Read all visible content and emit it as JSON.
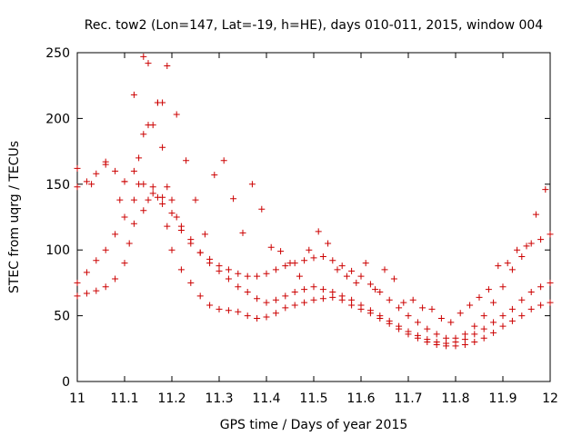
{
  "chart_data": {
    "type": "scatter",
    "title": "Rec. tow2 (Lon=147, Lat=-19, h=HE), days 010-011, 2015, window 004",
    "xlabel": "GPS time / Days of year 2015",
    "ylabel": "STEC from uqrg / TECUs",
    "xlim": [
      11,
      12
    ],
    "ylim": [
      0,
      250
    ],
    "xticks": [
      "11",
      "11.1",
      "11.2",
      "11.3",
      "11.4",
      "11.5",
      "11.6",
      "11.7",
      "11.8",
      "11.9",
      "12"
    ],
    "yticks": [
      "0",
      "50",
      "100",
      "150",
      "200",
      "250"
    ],
    "grid": false,
    "marker": "+",
    "color": "#cc0000",
    "series": [
      {
        "x": [
          11.0,
          11.02,
          11.04,
          11.06,
          11.08,
          11.1,
          11.11,
          11.12,
          11.14,
          11.15,
          11.16,
          11.17,
          11.18,
          11.19,
          11.2,
          11.22,
          11.24,
          11.26,
          11.28,
          11.3,
          11.32,
          11.34,
          11.36,
          11.38,
          11.4,
          11.42,
          11.44,
          11.46,
          11.48,
          11.5,
          11.52,
          11.54,
          11.56,
          11.58,
          11.6,
          11.62,
          11.64,
          11.66,
          11.68,
          11.7,
          11.72,
          11.74,
          11.76,
          11.78,
          11.8,
          11.82,
          11.84,
          11.86,
          11.88,
          11.9,
          11.92,
          11.94,
          11.96,
          11.98,
          12.0
        ],
        "y": [
          65,
          67,
          69,
          72,
          78,
          90,
          105,
          120,
          130,
          138,
          143,
          140,
          135,
          118,
          100,
          85,
          75,
          65,
          58,
          55,
          54,
          53,
          50,
          48,
          49,
          52,
          56,
          58,
          60,
          62,
          63,
          64,
          62,
          58,
          55,
          52,
          48,
          44,
          40,
          36,
          33,
          30,
          28,
          27,
          27,
          28,
          30,
          33,
          37,
          42,
          46,
          50,
          55,
          58,
          60
        ]
      },
      {
        "x": [
          11.0,
          11.02,
          11.04,
          11.06,
          11.08,
          11.1,
          11.12,
          11.14,
          11.16,
          11.18,
          11.2,
          11.22,
          11.24,
          11.26,
          11.28,
          11.3,
          11.32,
          11.34,
          11.36,
          11.38,
          11.4,
          11.42,
          11.44,
          11.46,
          11.48,
          11.5,
          11.52,
          11.54,
          11.56,
          11.58,
          11.6,
          11.62,
          11.64,
          11.66,
          11.68,
          11.7,
          11.72,
          11.74,
          11.76,
          11.78,
          11.8,
          11.82,
          11.84,
          11.86,
          11.88,
          11.9,
          11.92,
          11.94,
          11.96,
          11.98,
          12.0
        ],
        "y": [
          75,
          83,
          92,
          100,
          112,
          125,
          138,
          150,
          148,
          140,
          128,
          118,
          108,
          98,
          90,
          84,
          78,
          72,
          68,
          63,
          60,
          62,
          65,
          68,
          70,
          72,
          70,
          68,
          65,
          62,
          58,
          54,
          50,
          46,
          42,
          38,
          35,
          32,
          30,
          29,
          30,
          32,
          36,
          40,
          45,
          50,
          55,
          62,
          68,
          72,
          75
        ]
      },
      {
        "x": [
          11.0,
          11.02,
          11.04,
          11.06,
          11.08,
          11.1,
          11.12,
          11.13,
          11.14,
          11.15,
          11.16,
          11.17,
          11.18,
          11.19,
          11.2,
          11.21,
          11.22,
          11.24,
          11.26,
          11.28,
          11.3,
          11.32,
          11.34,
          11.36,
          11.38,
          11.4,
          11.42,
          11.44,
          11.46,
          11.48,
          11.5,
          11.52,
          11.54,
          11.56,
          11.58,
          11.6,
          11.62,
          11.64,
          11.66,
          11.68,
          11.7,
          11.72,
          11.74,
          11.76,
          11.78,
          11.8,
          11.82,
          11.84,
          11.86,
          11.88,
          11.9,
          11.92,
          11.94,
          11.96,
          11.98,
          12.0
        ],
        "y": [
          148,
          152,
          158,
          165,
          160,
          152,
          160,
          170,
          188,
          195,
          195,
          212,
          178,
          148,
          138,
          125,
          115,
          105,
          98,
          93,
          88,
          85,
          82,
          80,
          80,
          82,
          85,
          88,
          90,
          92,
          94,
          95,
          92,
          88,
          84,
          80,
          74,
          68,
          62,
          56,
          50,
          45,
          40,
          36,
          33,
          33,
          36,
          42,
          50,
          60,
          72,
          85,
          95,
          105,
          108,
          112
        ]
      },
      {
        "x": [
          11.0,
          11.03,
          11.06,
          11.09,
          11.1,
          11.12,
          11.13,
          11.14,
          11.15,
          11.17,
          11.18,
          11.19,
          11.21,
          11.23,
          11.25,
          11.27,
          11.29,
          11.31,
          11.33,
          11.35,
          11.37,
          11.39,
          11.41,
          11.43,
          11.45,
          11.47,
          11.49,
          11.51,
          11.53,
          11.55,
          11.57,
          11.59,
          11.61,
          11.63,
          11.65,
          11.67,
          11.69,
          11.71,
          11.73,
          11.75,
          11.77,
          11.79,
          11.81,
          11.83,
          11.85,
          11.87,
          11.89,
          11.91,
          11.93,
          11.95,
          11.97,
          11.99
        ],
        "y": [
          162,
          150,
          167,
          138,
          152,
          218,
          150,
          247,
          242,
          212,
          212,
          240,
          203,
          168,
          138,
          112,
          157,
          168,
          139,
          113,
          150,
          131,
          102,
          99,
          90,
          80,
          100,
          114,
          105,
          85,
          80,
          75,
          90,
          70,
          85,
          78,
          60,
          62,
          56,
          55,
          48,
          45,
          52,
          58,
          64,
          70,
          88,
          90,
          100,
          103,
          127,
          146
        ]
      }
    ]
  }
}
